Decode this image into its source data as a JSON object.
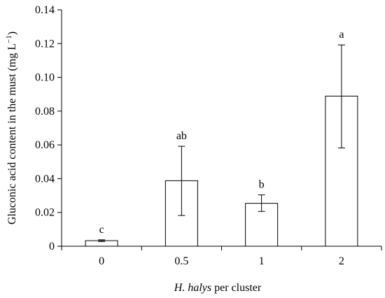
{
  "chart_data": {
    "type": "bar",
    "categories": [
      "0",
      "0.5",
      "1",
      "2"
    ],
    "values": [
      0.0033,
      0.0388,
      0.0254,
      0.0889
    ],
    "error_low": [
      0.0028,
      0.0182,
      0.0206,
      0.0582
    ],
    "error_high": [
      0.0038,
      0.0592,
      0.0304,
      0.1192
    ],
    "significance_labels": [
      "c",
      "ab",
      "b",
      "a"
    ],
    "xlabel_italic": "H. halys",
    "xlabel_rest": " per cluster",
    "ylabel": "Gluconic acid content in the must (mg L",
    "ylabel_sup": "−1",
    "ylabel_close": ")",
    "ylim": [
      0,
      0.14
    ],
    "yticks": [
      "0",
      "0.02",
      "0.04",
      "0.06",
      "0.08",
      "0.10",
      "0.12",
      "0.14"
    ],
    "ytick_values": [
      0,
      0.02,
      0.04,
      0.06,
      0.08,
      0.1,
      0.12,
      0.14
    ],
    "grid": false,
    "bar_fill": "#ffffff",
    "stroke_color": "#000000"
  }
}
